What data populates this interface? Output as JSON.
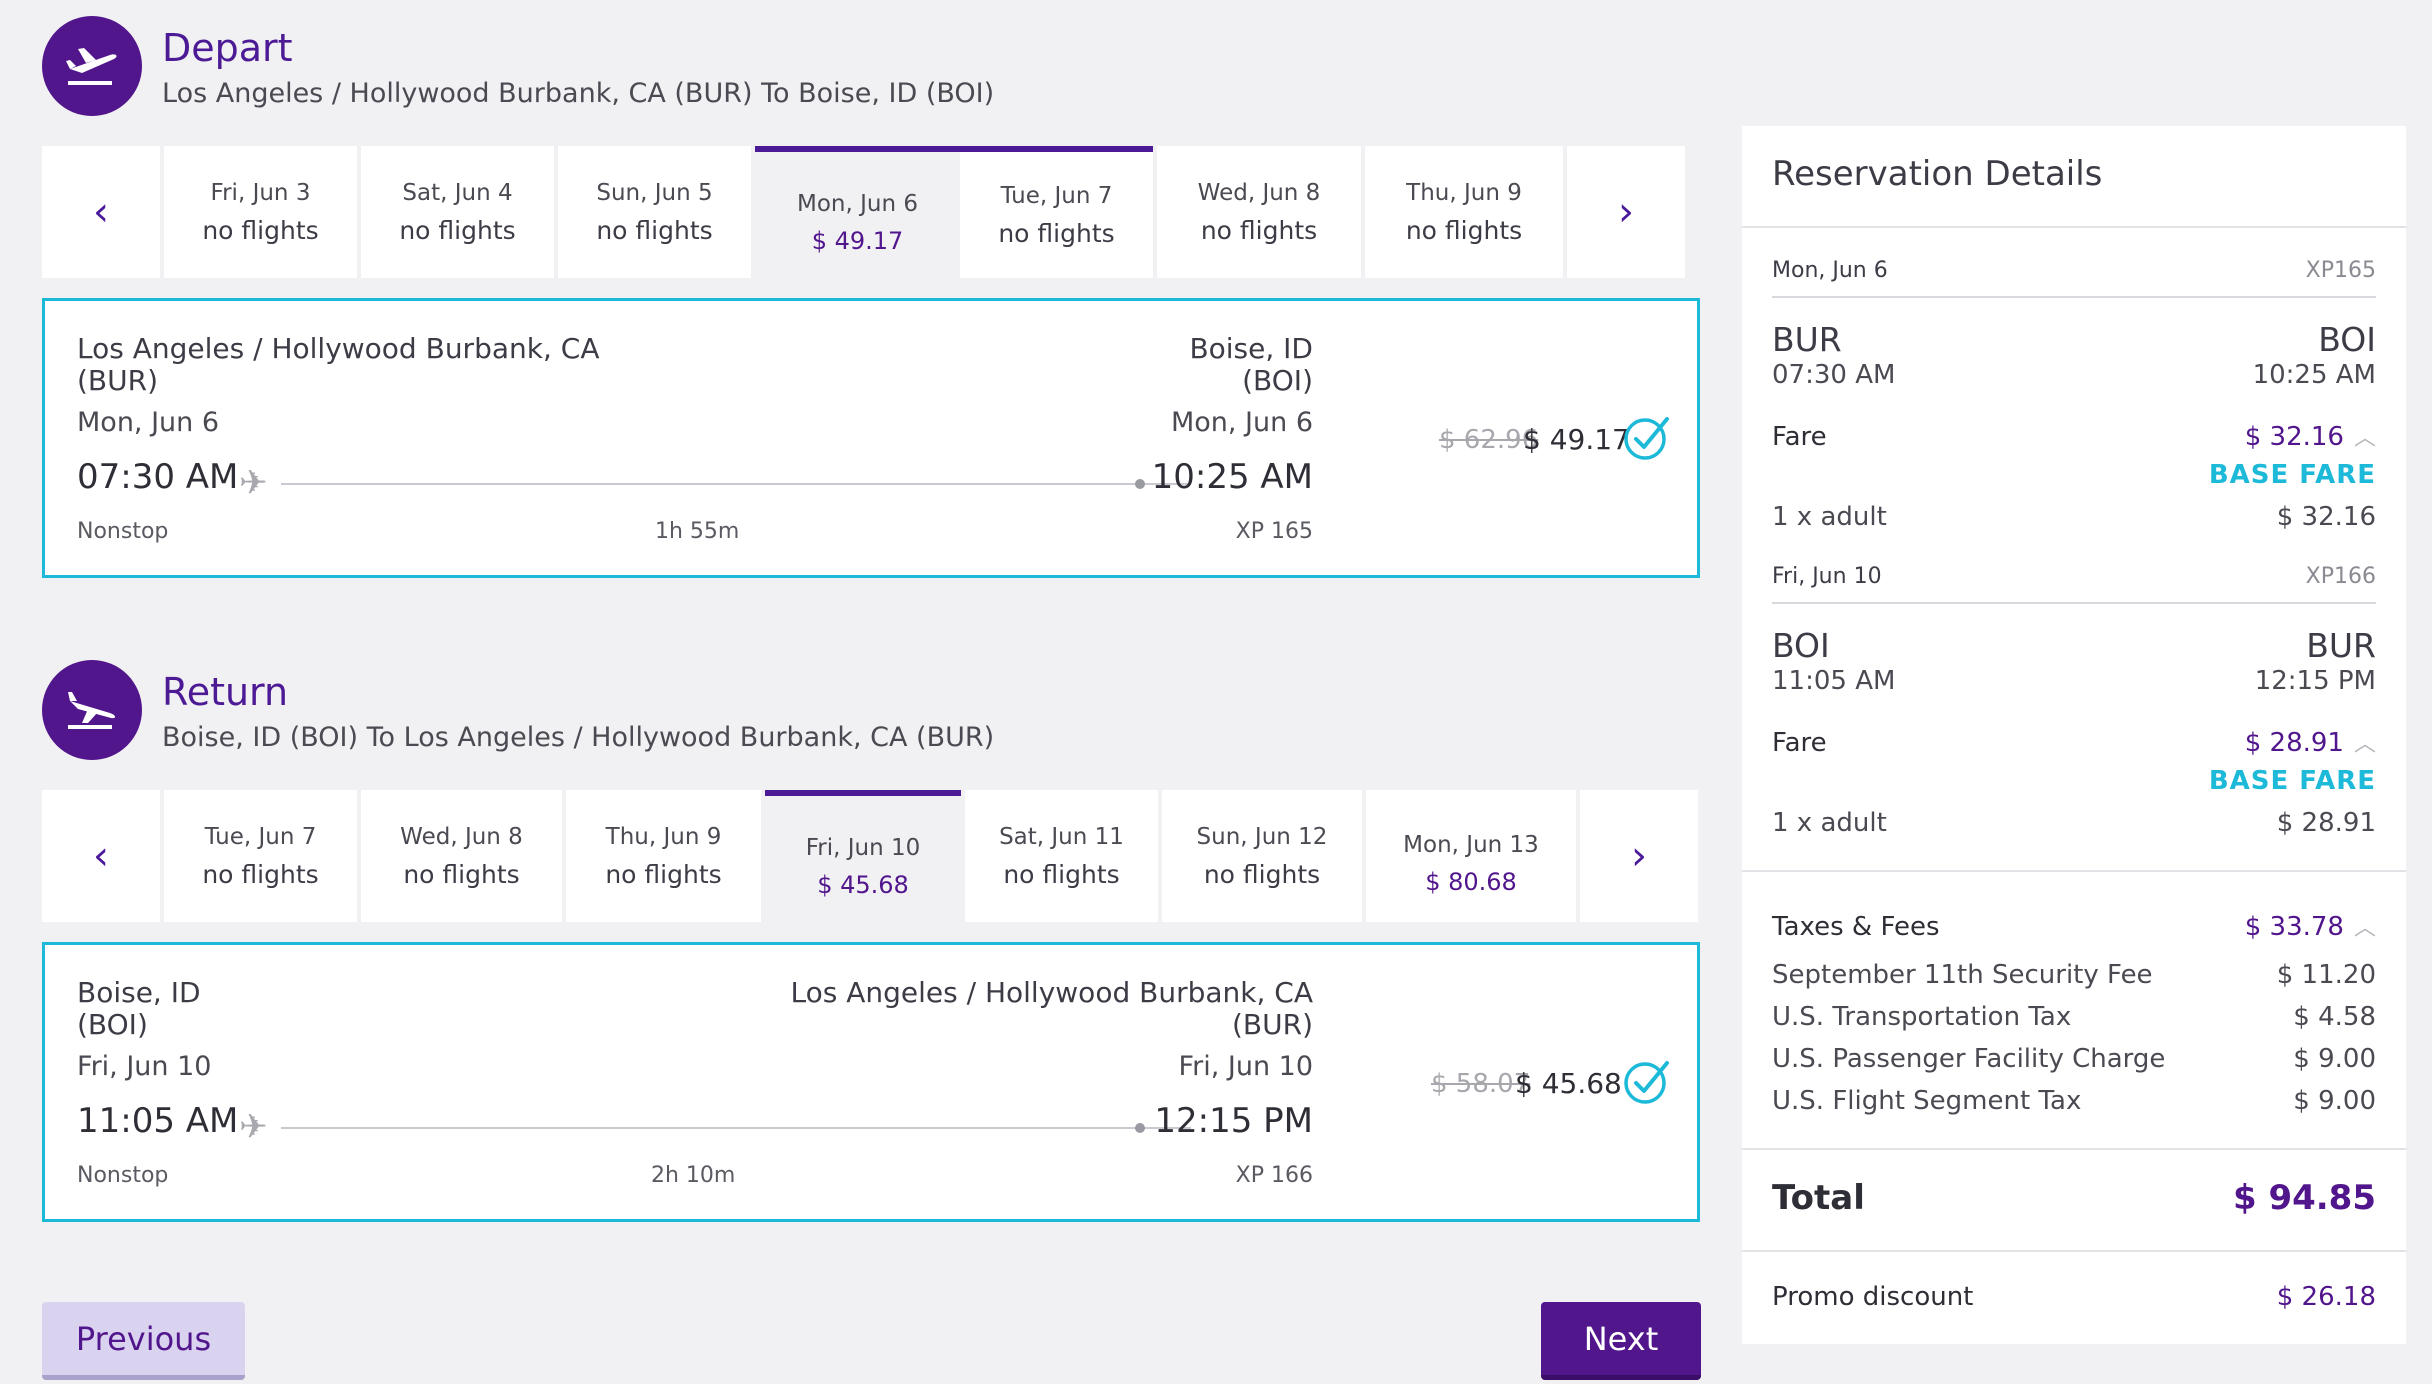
{
  "depart": {
    "title": "Depart",
    "route": "Los Angeles / Hollywood Burbank, CA (BUR) To Boise, ID (BOI)",
    "dates": [
      {
        "day": "Fri, Jun 3",
        "status": "no flights"
      },
      {
        "day": "Sat, Jun 4",
        "status": "no flights"
      },
      {
        "day": "Sun, Jun 5",
        "status": "no flights"
      },
      {
        "day": "Mon, Jun 6",
        "price": "$ 49.17",
        "selected": true
      },
      {
        "day": "Tue, Jun 7",
        "status": "no flights"
      },
      {
        "day": "Wed, Jun 8",
        "status": "no flights"
      },
      {
        "day": "Thu, Jun 9",
        "status": "no flights"
      }
    ],
    "card": {
      "origin_city": "Los Angeles / Hollywood Burbank, CA",
      "origin_code": "(BUR)",
      "dest_city": "Boise, ID",
      "dest_code": "(BOI)",
      "origin_date": "Mon, Jun 6",
      "dest_date": "Mon, Jun 6",
      "depart_time": "07:30 AM",
      "arrive_time": "10:25 AM",
      "stops": "Nonstop",
      "duration": "1h 55m",
      "flight_no": "XP 165",
      "old_price": "$ 62.96",
      "price": "$ 49.17"
    }
  },
  "return": {
    "title": "Return",
    "route": "Boise, ID (BOI) To Los Angeles / Hollywood Burbank, CA (BUR)",
    "dates": [
      {
        "day": "Tue, Jun 7",
        "status": "no flights"
      },
      {
        "day": "Wed, Jun 8",
        "status": "no flights"
      },
      {
        "day": "Thu, Jun 9",
        "status": "no flights"
      },
      {
        "day": "Fri, Jun 10",
        "price": "$ 45.68",
        "selected": true
      },
      {
        "day": "Sat, Jun 11",
        "status": "no flights"
      },
      {
        "day": "Sun, Jun 12",
        "status": "no flights"
      },
      {
        "day": "Mon, Jun 13",
        "price": "$ 80.68"
      }
    ],
    "card": {
      "origin_city": "Boise, ID",
      "origin_code": "(BOI)",
      "dest_city": "Los Angeles / Hollywood Burbank, CA",
      "dest_code": "(BUR)",
      "origin_date": "Fri, Jun 10",
      "dest_date": "Fri, Jun 10",
      "depart_time": "11:05 AM",
      "arrive_time": "12:15 PM",
      "stops": "Nonstop",
      "duration": "2h 10m",
      "flight_no": "XP 166",
      "old_price": "$ 58.07",
      "price": "$ 45.68"
    }
  },
  "reservation": {
    "title": "Reservation Details",
    "legs": [
      {
        "date": "Mon, Jun 6",
        "flight": "XP165",
        "from": "BUR",
        "to": "BOI",
        "dep_time": "07:30 AM",
        "arr_time": "10:25 AM",
        "fare_label": "Fare",
        "fare_price": "$ 32.16",
        "fare_type": "BASE FARE",
        "pax": "1 x adult",
        "pax_price": "$ 32.16"
      },
      {
        "date": "Fri, Jun 10",
        "flight": "XP166",
        "from": "BOI",
        "to": "BUR",
        "dep_time": "11:05 AM",
        "arr_time": "12:15 PM",
        "fare_label": "Fare",
        "fare_price": "$ 28.91",
        "fare_type": "BASE FARE",
        "pax": "1 x adult",
        "pax_price": "$ 28.91"
      }
    ],
    "taxes": {
      "label": "Taxes & Fees",
      "total": "$ 33.78",
      "items": [
        {
          "name": "September 11th Security Fee",
          "amount": "$ 11.20"
        },
        {
          "name": "U.S. Transportation Tax",
          "amount": "$ 4.58"
        },
        {
          "name": "U.S. Passenger Facility Charge",
          "amount": "$ 9.00"
        },
        {
          "name": "U.S. Flight Segment Tax",
          "amount": "$ 9.00"
        }
      ]
    },
    "total_label": "Total",
    "total": "$ 94.85",
    "promo_label": "Promo discount",
    "promo": "$ 26.18"
  },
  "buttons": {
    "previous": "Previous",
    "next": "Next"
  },
  "colors": {
    "brand_purple": "#51158c",
    "accent_teal": "#1db9d8",
    "background": "#f1f0f3"
  }
}
